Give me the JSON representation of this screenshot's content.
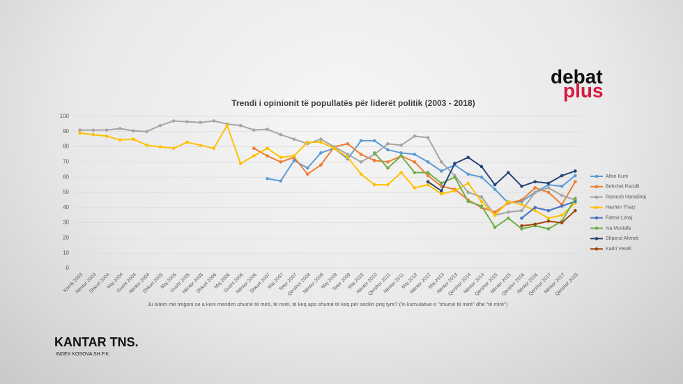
{
  "chart_data": {
    "type": "line",
    "title": "Trendi i opinionit të popullatës për liderët politik (2003 - 2018)",
    "x_label": "Ju lutem më tregoni se a keni mendim shumë të mirë, të mirë, të keq apo shumë të keq për secilin prej tyre? (% kumulative e \"shumë të mirë\" dhe \"të mirë\")",
    "categories": [
      "Korrik 2003",
      "Nëntor 2003",
      "Shkurt 2004",
      "Maj 2004",
      "Gusht 2004",
      "Nëntor 2004",
      "Shkurt 2005",
      "Maj 2005",
      "Gusht 2005",
      "Nëntor 2005",
      "Shkurt 2006",
      "Maj 2006",
      "Gusht 2006",
      "Nëntor 2006",
      "Shkurt 2007",
      "Maj 2007",
      "Tetor 2007",
      "Qershor 2008",
      "Nëntor 2008",
      "Maj 2009",
      "Tetor 2009",
      "Maj 2010",
      "Nëntor 2010",
      "Qershor 2011",
      "Nëntor 2011",
      "Maj 2012",
      "Nëntor 2012",
      "Maj 2013",
      "Nëntor 2013",
      "Qershor 2014",
      "Nëntor 2014",
      "Qershor 2015",
      "Nëntor 2015",
      "Qershor 2016",
      "Nëntor 2016",
      "Qershor 2017",
      "Nëntor 2017",
      "Qershor 2018"
    ],
    "series": [
      {
        "name": "Albin Kurti",
        "color": "#5b9bd5",
        "values": [
          null,
          null,
          null,
          null,
          null,
          null,
          null,
          null,
          null,
          null,
          null,
          null,
          null,
          null,
          59,
          57.5,
          71,
          66,
          76,
          79,
          72,
          84,
          84,
          78,
          76,
          75,
          70,
          64,
          68,
          62,
          60,
          52,
          43,
          44,
          50,
          55,
          54,
          61
        ]
      },
      {
        "name": "Behxhet Pacolli",
        "color": "#ed7d31",
        "values": [
          null,
          null,
          null,
          null,
          null,
          null,
          null,
          null,
          null,
          null,
          null,
          null,
          null,
          79,
          74,
          70,
          73,
          62,
          68,
          80,
          82,
          75,
          71,
          70,
          74,
          70,
          61,
          54,
          52,
          45,
          40,
          37,
          43,
          45,
          53,
          50,
          42,
          57
        ]
      },
      {
        "name": "Ramush Haradinaj",
        "color": "#a5a5a5",
        "values": [
          91,
          91,
          91,
          92,
          90.5,
          90,
          94,
          97,
          96.5,
          96,
          97,
          95,
          94,
          91,
          91.5,
          88,
          85,
          82,
          85,
          80,
          75,
          70,
          75,
          82,
          81,
          87,
          86,
          70,
          61,
          50,
          47,
          35,
          37,
          38,
          50,
          53,
          48,
          45
        ]
      },
      {
        "name": "Hashim Thaçi",
        "color": "#ffc000",
        "values": [
          89,
          88,
          87,
          84.5,
          85,
          81,
          80,
          79,
          83,
          81,
          79,
          94,
          69,
          74,
          79,
          73,
          74,
          83,
          83,
          79,
          73,
          62,
          55,
          55,
          63,
          53,
          55,
          49,
          51,
          56,
          44,
          35,
          44,
          42,
          38,
          33,
          35,
          43
        ]
      },
      {
        "name": "Fatmir Limaj",
        "color": "#4472c4",
        "values": [
          null,
          null,
          null,
          null,
          null,
          null,
          null,
          null,
          null,
          null,
          null,
          null,
          null,
          null,
          null,
          null,
          null,
          null,
          null,
          null,
          null,
          null,
          null,
          null,
          null,
          null,
          null,
          null,
          null,
          null,
          null,
          null,
          null,
          33,
          40,
          38,
          41,
          44
        ]
      },
      {
        "name": "Isa Mustafa",
        "color": "#70ad47",
        "values": [
          null,
          null,
          null,
          null,
          null,
          null,
          null,
          null,
          null,
          null,
          null,
          null,
          null,
          null,
          null,
          null,
          null,
          null,
          null,
          null,
          null,
          null,
          76,
          66,
          74,
          63,
          63,
          56,
          60,
          44,
          41,
          27,
          33,
          26,
          28,
          26,
          31,
          46
        ]
      },
      {
        "name": "Shpend Ahmeti",
        "color": "#264478",
        "values": [
          null,
          null,
          null,
          null,
          null,
          null,
          null,
          null,
          null,
          null,
          null,
          null,
          null,
          null,
          null,
          null,
          null,
          null,
          null,
          null,
          null,
          null,
          null,
          null,
          null,
          null,
          57,
          51,
          69,
          73,
          67,
          55,
          63,
          54,
          57,
          56,
          61,
          64
        ]
      },
      {
        "name": "Kadri Veseli",
        "color": "#9e480e",
        "values": [
          null,
          null,
          null,
          null,
          null,
          null,
          null,
          null,
          null,
          null,
          null,
          null,
          null,
          null,
          null,
          null,
          null,
          null,
          null,
          null,
          null,
          null,
          null,
          null,
          null,
          null,
          null,
          null,
          null,
          null,
          null,
          null,
          null,
          28,
          29,
          31,
          30,
          38
        ]
      }
    ],
    "ylim": [
      0,
      100
    ],
    "yticks": [
      0,
      10,
      20,
      30,
      40,
      50,
      60,
      70,
      80,
      90,
      100
    ],
    "grid": true,
    "legend": "right"
  },
  "logos": {
    "debat": "debat",
    "plus": "plus",
    "kantar": "KANTAR TNS.",
    "index": "INDEX KOSOVA SH.P.K."
  }
}
